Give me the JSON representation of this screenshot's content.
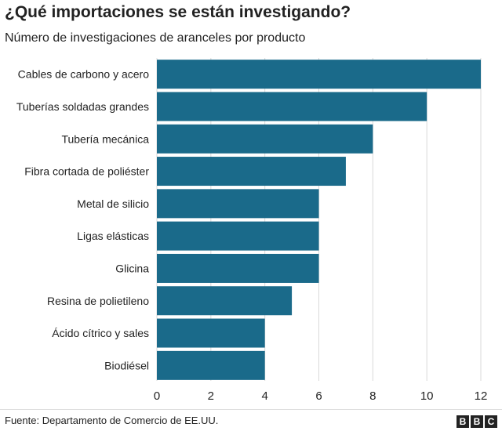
{
  "chart_data": {
    "type": "bar",
    "orientation": "horizontal",
    "title": "¿Qué importaciones se están investigando?",
    "subtitle": "Número de investigaciones de aranceles por producto",
    "categories": [
      "Cables de carbono y acero",
      "Tuberías soldadas grandes",
      "Tubería mecánica",
      "Fibra cortada de poliéster",
      "Metal de silicio",
      "Ligas elásticas",
      "Glicina",
      "Resina de polietileno",
      "Ácido cítrico y sales",
      "Biodiésel"
    ],
    "values": [
      12,
      10,
      8,
      7,
      6,
      6,
      6,
      5,
      4,
      4
    ],
    "xlim": [
      0,
      12
    ],
    "xticks": [
      0,
      2,
      4,
      6,
      8,
      10,
      12
    ],
    "grid": "vertical",
    "bar_color": "#1a6a8a",
    "grid_color": "#d9d9d9"
  },
  "footer": {
    "source": "Fuente: Departamento de Comercio de EE.UU.",
    "logo_letters": [
      "B",
      "B",
      "C"
    ]
  }
}
